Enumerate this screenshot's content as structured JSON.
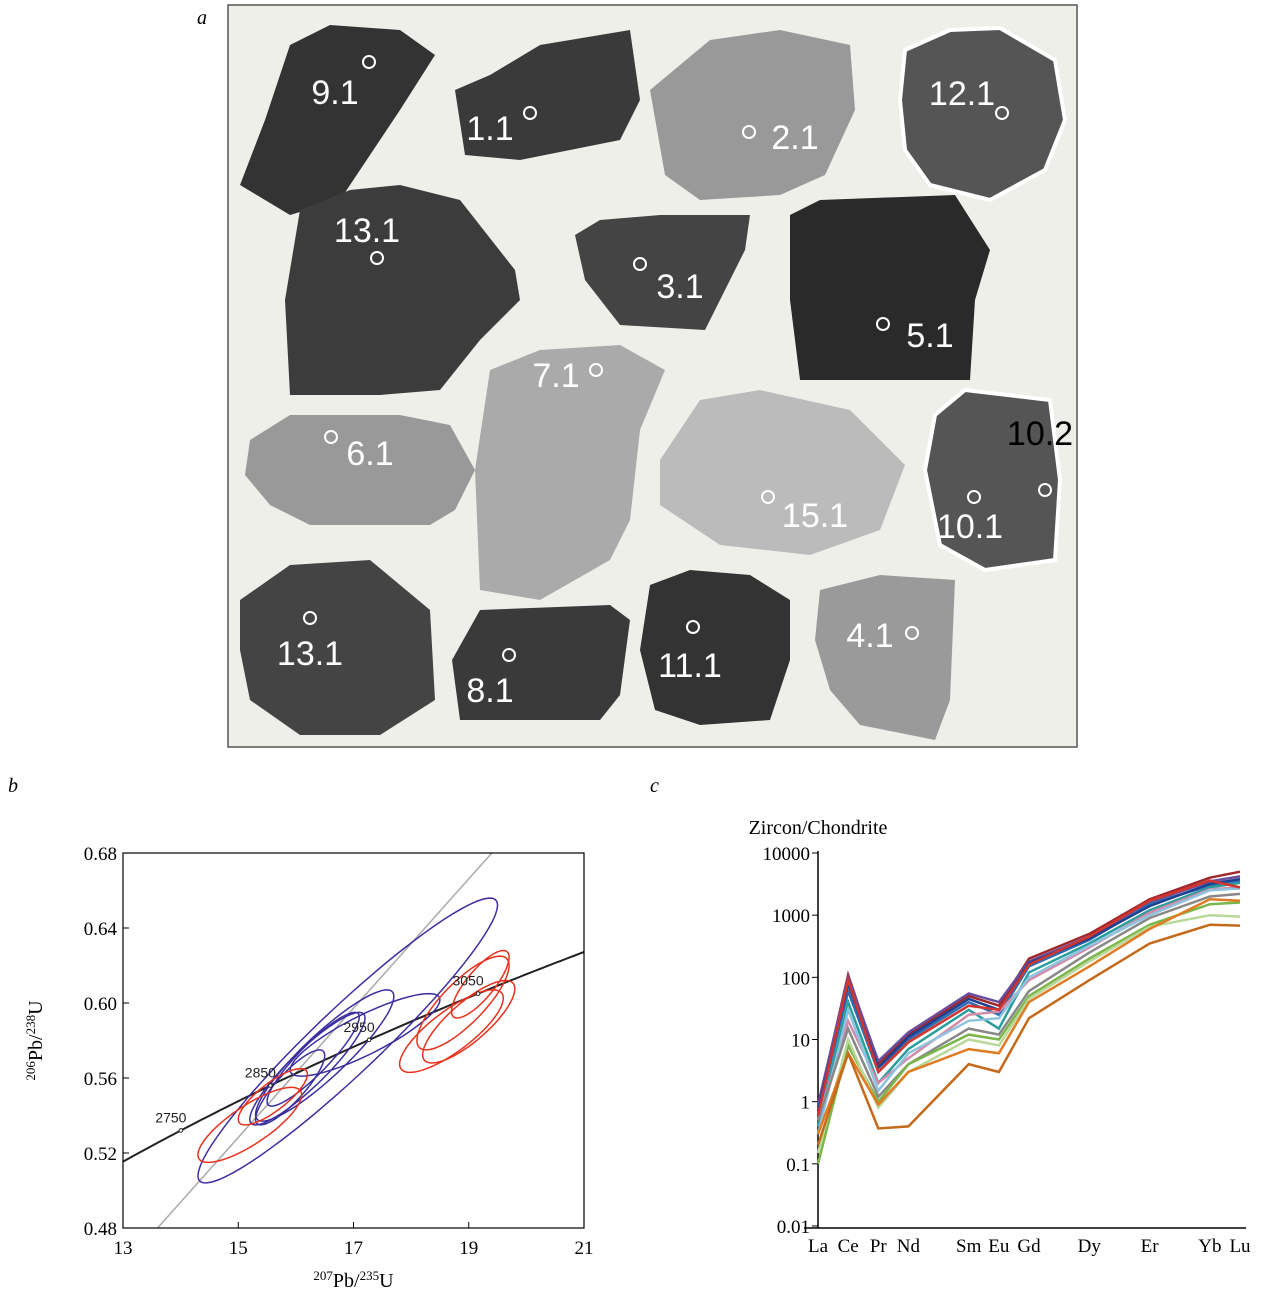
{
  "figure_a": {
    "panel_label": "a",
    "grain_labels": [
      "9.1",
      "1.1",
      "2.1",
      "12.1",
      "13.1",
      "3.1",
      "5.1",
      "7.1",
      "6.1",
      "15.1",
      "10.2",
      "10.1",
      "13.1",
      "8.1",
      "11.1",
      "4.1"
    ]
  },
  "chart_data": [
    {
      "type": "concordia",
      "panel_label": "b",
      "x_label": {
        "mass": "207",
        "element": "Pb/",
        "mass2": "235",
        "element2": "U"
      },
      "y_label": {
        "mass": "206",
        "element": "Pb/",
        "mass2": "238",
        "element2": "U"
      },
      "xlim": [
        13,
        21
      ],
      "xticks": [
        13,
        15,
        17,
        19,
        21
      ],
      "ylim": [
        0.48,
        0.68
      ],
      "yticks": [
        0.48,
        0.52,
        0.56,
        {
          "value": 0.6,
          "label": "0.60"
        },
        0.64,
        0.68
      ],
      "concordia_ages": [
        2750,
        2850,
        2950,
        3050
      ],
      "concordia_color": "#222222",
      "reference_line": {
        "x": [
          13.6,
          19.4
        ],
        "y": [
          0.48,
          0.68
        ],
        "color": "#aaaaaa"
      },
      "series": [
        {
          "color": "#3b2fa0",
          "x": [
            16.9,
            16.2,
            16.5,
            15.9,
            16.3,
            17.2
          ],
          "y": [
            0.58,
            0.565,
            0.572,
            0.555,
            0.57,
            0.583
          ],
          "x_err": [
            2.6,
            1.0,
            1.2,
            0.6,
            0.8,
            1.3
          ],
          "y_err": [
            0.076,
            0.03,
            0.035,
            0.02,
            0.025,
            0.022
          ],
          "rho": [
            0.95,
            0.9,
            0.9,
            0.85,
            0.9,
            0.85
          ]
        },
        {
          "color": "#e8321e",
          "x": [
            15.2,
            15.6,
            19.0,
            18.9,
            18.7,
            19.2
          ],
          "y": [
            0.535,
            0.55,
            0.59,
            0.6,
            0.585,
            0.61
          ],
          "x_err": [
            0.9,
            0.6,
            0.8,
            0.8,
            0.9,
            0.5
          ],
          "y_err": [
            0.02,
            0.015,
            0.022,
            0.025,
            0.022,
            0.018
          ],
          "rho": [
            0.8,
            0.8,
            0.8,
            0.8,
            0.8,
            0.8
          ]
        }
      ]
    },
    {
      "type": "line",
      "panel_label": "c",
      "y_title": "Zircon/Chondrite",
      "log_scale": true,
      "categories": [
        "La",
        "Ce",
        "Pr",
        "Nd",
        "Sm",
        "Eu",
        "Gd",
        "Dy",
        "Er",
        "Yb",
        "Lu"
      ],
      "ylim": [
        0.01,
        10000
      ],
      "yticks": [
        0.01,
        0.1,
        1,
        10,
        100,
        1000,
        10000
      ],
      "series": [
        {
          "color": "#a0282d",
          "values": [
            0.8,
            110,
            4,
            12,
            50,
            35,
            200,
            500,
            1800,
            4000,
            5000
          ]
        },
        {
          "color": "#6b4e9b",
          "values": [
            0.9,
            100,
            4.5,
            13,
            55,
            40,
            180,
            450,
            1600,
            3500,
            4200
          ]
        },
        {
          "color": "#2e6db4",
          "values": [
            0.6,
            60,
            3,
            10,
            40,
            25,
            150,
            400,
            1500,
            3000,
            3500
          ]
        },
        {
          "color": "#2a9d9d",
          "values": [
            0.4,
            40,
            2,
            7,
            30,
            15,
            120,
            350,
            1200,
            2800,
            3300
          ]
        },
        {
          "color": "#d48aa8",
          "values": [
            0.5,
            20,
            2,
            5,
            25,
            28,
            90,
            300,
            1100,
            2600,
            2800
          ]
        },
        {
          "color": "#8ec3e0",
          "values": [
            0.3,
            30,
            1.5,
            6,
            20,
            22,
            100,
            320,
            1000,
            2500,
            2700
          ]
        },
        {
          "color": "#888888",
          "values": [
            0.5,
            15,
            1.2,
            4,
            15,
            12,
            60,
            250,
            900,
            2000,
            2200
          ]
        },
        {
          "color": "#7ab648",
          "values": [
            0.1,
            8,
            1,
            4,
            12,
            10,
            50,
            200,
            700,
            1500,
            1600
          ]
        },
        {
          "color": "#b8d89a",
          "values": [
            0.15,
            10,
            0.8,
            3,
            10,
            8,
            45,
            180,
            650,
            1000,
            950
          ]
        },
        {
          "color": "#e07b24",
          "values": [
            0.3,
            6,
            0.9,
            3,
            7,
            6,
            40,
            150,
            600,
            1800,
            1700
          ]
        },
        {
          "color": "#c46a1a",
          "values": [
            0.2,
            6,
            0.37,
            0.4,
            4,
            3,
            22,
            90,
            350,
            700,
            680
          ]
        },
        {
          "color": "#1f3f8f",
          "values": [
            0.7,
            80,
            3.5,
            11,
            45,
            30,
            170,
            420,
            1400,
            3200,
            3800
          ]
        },
        {
          "color": "#d1352e",
          "values": [
            0.6,
            90,
            3,
            9,
            35,
            30,
            160,
            450,
            1700,
            3600,
            2800
          ]
        }
      ]
    }
  ]
}
